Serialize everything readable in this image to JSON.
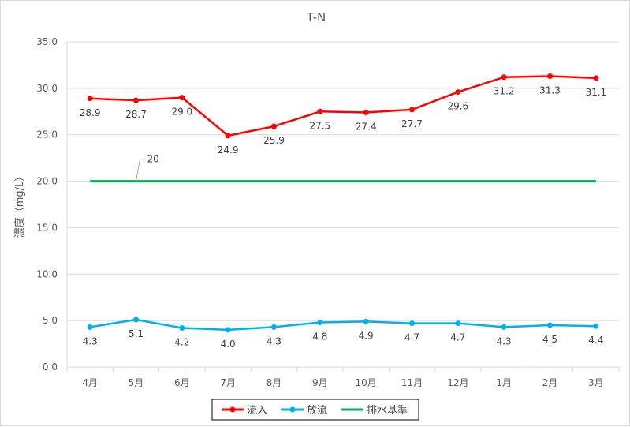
{
  "chart_data": {
    "type": "line",
    "title": "T-N",
    "xlabel": "",
    "ylabel": "濃度（mg/L）",
    "categories": [
      "4月",
      "5月",
      "6月",
      "7月",
      "8月",
      "9月",
      "10月",
      "11月",
      "12月",
      "1月",
      "2月",
      "3月"
    ],
    "ylim": [
      0,
      35
    ],
    "yticks": [
      "0.0",
      "5.0",
      "10.0",
      "15.0",
      "20.0",
      "25.0",
      "30.0",
      "35.0"
    ],
    "grid": true,
    "legend_position": "bottom",
    "series": [
      {
        "name": "流入",
        "color": "#ff0000",
        "values": [
          28.9,
          28.7,
          29.0,
          24.9,
          25.9,
          27.5,
          27.4,
          27.7,
          29.6,
          31.2,
          31.3,
          31.1
        ],
        "labels": [
          "28.9",
          "28.7",
          "29.0",
          "24.9",
          "25.9",
          "27.5",
          "27.4",
          "27.7",
          "29.6",
          "31.2",
          "31.3",
          "31.1"
        ]
      },
      {
        "name": "放流",
        "color": "#00b0f0",
        "values": [
          4.3,
          5.1,
          4.2,
          4.0,
          4.3,
          4.8,
          4.9,
          4.7,
          4.7,
          4.3,
          4.5,
          4.4
        ],
        "labels": [
          "4.3",
          "5.1",
          "4.2",
          "4.0",
          "4.3",
          "4.8",
          "4.9",
          "4.7",
          "4.7",
          "4.3",
          "4.5",
          "4.4"
        ]
      },
      {
        "name": "排水基準",
        "color": "#00b050",
        "values": [
          20,
          20,
          20,
          20,
          20,
          20,
          20,
          20,
          20,
          20,
          20,
          20
        ],
        "annotation": "20"
      }
    ]
  }
}
